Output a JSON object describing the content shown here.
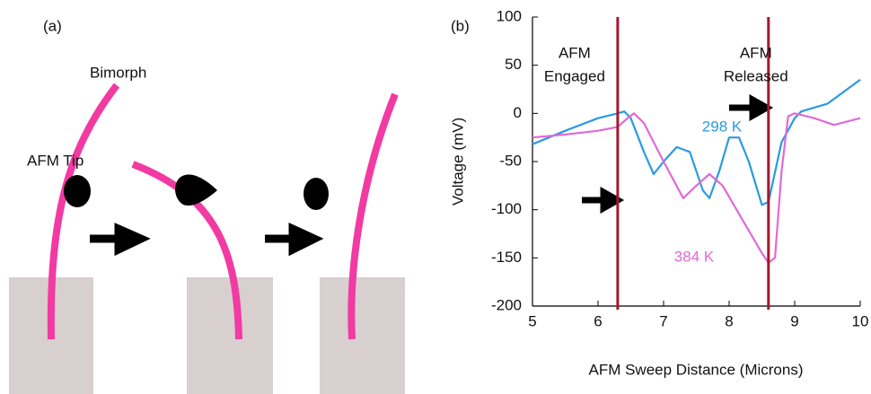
{
  "panel_a": {
    "label": "(a)",
    "bimorph_label": "Bimorph",
    "tip_label": "AFM Tip"
  },
  "chart_data": {
    "type": "line",
    "panel_label": "(b)",
    "x_label": "AFM Sweep Distance (Microns)",
    "y_label": "Voltage (mV)",
    "xlim": [
      5,
      10
    ],
    "xticks": [
      5,
      6,
      7,
      8,
      9,
      10
    ],
    "ylim": [
      -200,
      100
    ],
    "yticks": [
      -200,
      -150,
      -100,
      -50,
      0,
      50,
      100
    ],
    "markers": [
      {
        "x": 6.3,
        "text": [
          "AFM",
          "Engaged"
        ],
        "color": "#a3182f"
      },
      {
        "x": 8.6,
        "text": [
          "AFM",
          "Released"
        ],
        "color": "#a3182f"
      }
    ],
    "series": [
      {
        "name": "298 K",
        "color": "#2b9ae0",
        "x": [
          5.0,
          5.5,
          6.0,
          6.3,
          6.4,
          6.5,
          6.7,
          6.85,
          7.0,
          7.2,
          7.4,
          7.6,
          7.7,
          7.85,
          8.0,
          8.15,
          8.3,
          8.5,
          8.6,
          8.8,
          9.0,
          9.1,
          9.5,
          10.0
        ],
        "values": [
          -32,
          -18,
          -5,
          0,
          2,
          -5,
          -40,
          -63,
          -50,
          -35,
          -40,
          -80,
          -88,
          -60,
          -25,
          -25,
          -50,
          -95,
          -92,
          -30,
          -5,
          2,
          10,
          35
        ]
      },
      {
        "name": "384 K",
        "color": "#e06ad6",
        "x": [
          5.0,
          5.5,
          6.0,
          6.3,
          6.45,
          6.55,
          6.7,
          7.0,
          7.3,
          7.5,
          7.7,
          7.9,
          8.2,
          8.5,
          8.6,
          8.7,
          8.8,
          8.9,
          9.0,
          9.3,
          9.6,
          10.0
        ],
        "values": [
          -25,
          -22,
          -18,
          -14,
          -5,
          0,
          -10,
          -50,
          -88,
          -75,
          -63,
          -75,
          -110,
          -145,
          -155,
          -150,
          -60,
          -3,
          0,
          -5,
          -12,
          -5
        ]
      }
    ]
  }
}
